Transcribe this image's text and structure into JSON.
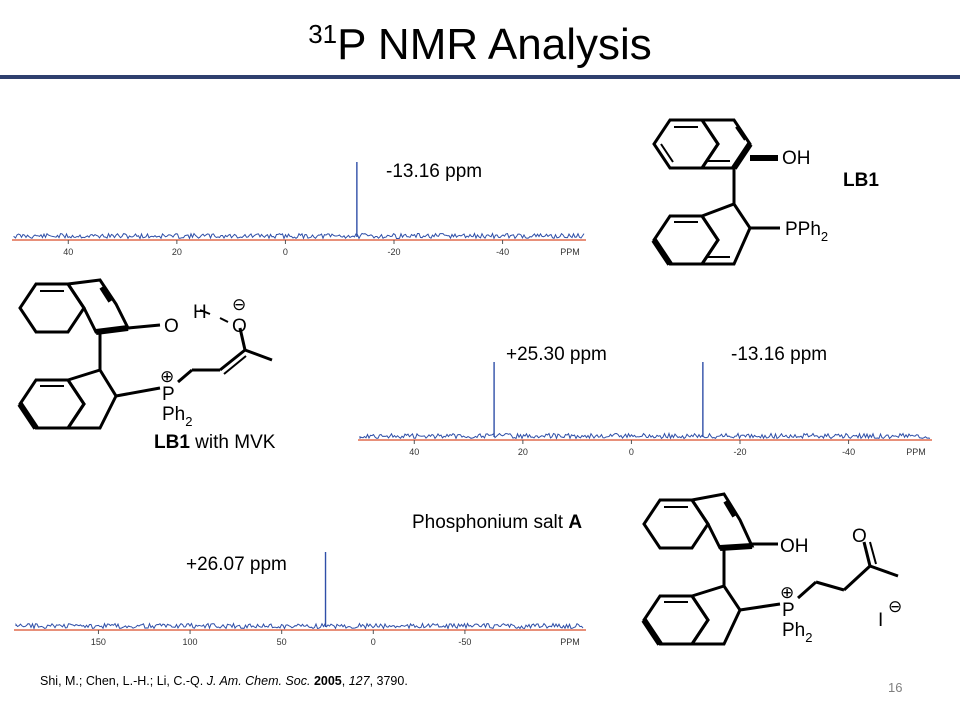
{
  "slide": {
    "title_sup": "31",
    "title_main": "P NMR Analysis",
    "page_number": "16",
    "accent_color": "#2e3f6e"
  },
  "spectra": [
    {
      "peaks_ppm": [
        -13.16
      ],
      "peak_labels": [
        "-13.16 ppm"
      ],
      "axis_ticks": [
        "40",
        "20",
        "0",
        "-20",
        "-40",
        "PPM"
      ],
      "xlim": [
        50,
        -55
      ]
    },
    {
      "peaks_ppm": [
        25.3,
        -13.16
      ],
      "peak_labels": [
        "+25.30 ppm",
        "-13.16 ppm"
      ],
      "axis_ticks": [
        "40",
        "20",
        "0",
        "-20",
        "-40",
        "PPM"
      ],
      "xlim": [
        50,
        -55
      ]
    },
    {
      "peaks_ppm": [
        26.07
      ],
      "peak_labels": [
        "+26.07 ppm"
      ],
      "axis_ticks": [
        "150",
        "100",
        "50",
        "0",
        "-50",
        "PPM"
      ],
      "xlim": [
        195,
        -115
      ]
    }
  ],
  "structures": {
    "lb1": {
      "name": "LB1",
      "oh": "OH",
      "pph": "PPh",
      "pph_sub": "2"
    },
    "mvk": {
      "name_bold": "LB1",
      "name_rest": " with MVK",
      "o1": "O",
      "h": "H",
      "o2": "O",
      "plus": "⊕",
      "minus": "⊖",
      "p": "P",
      "ph": "Ph",
      "ph_sub": "2"
    },
    "salt": {
      "name_text": "Phosphonium salt ",
      "name_bold": "A",
      "oh": "OH",
      "o": "O",
      "plus": "⊕",
      "p": "P",
      "ph": "Ph",
      "ph_sub": "2",
      "iodide": "I",
      "minus": "⊖"
    }
  },
  "footer": {
    "authors": "Shi, M.; Chen, L.-H.; Li, C.-Q. ",
    "journal": "J. Am. Chem. Soc.",
    "year": "2005",
    "volume": "127",
    "pages": ", 3790."
  }
}
